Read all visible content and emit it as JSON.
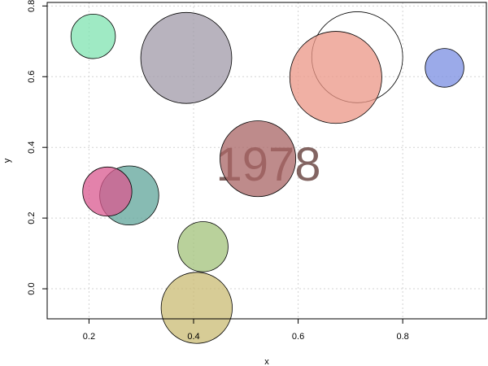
{
  "chart_data": {
    "type": "scatter",
    "xlabel": "x",
    "ylabel": "y",
    "xlim": [
      0.12,
      0.96
    ],
    "ylim": [
      -0.085,
      0.81
    ],
    "x_ticks": [
      0.2,
      0.4,
      0.6,
      0.8
    ],
    "x_tick_labels": [
      "0.2",
      "0.4",
      "0.6",
      "0.8"
    ],
    "y_ticks": [
      0.0,
      0.2,
      0.4,
      0.6,
      0.8
    ],
    "y_tick_labels": [
      "0.0",
      "0.2",
      "0.4",
      "0.6",
      "0.8"
    ],
    "grid": true,
    "annotation": "1978",
    "points": [
      {
        "x": 0.208,
        "y": 0.714,
        "size": 0.085,
        "fill": "#7fe3b0"
      },
      {
        "x": 0.386,
        "y": 0.653,
        "size": 0.174,
        "fill": "#a09aa8"
      },
      {
        "x": 0.713,
        "y": 0.655,
        "size": 0.174,
        "fill": "none"
      },
      {
        "x": 0.672,
        "y": 0.598,
        "size": 0.176,
        "fill": "#eb9686"
      },
      {
        "x": 0.88,
        "y": 0.625,
        "size": 0.074,
        "fill": "#7a8ee2"
      },
      {
        "x": 0.523,
        "y": 0.368,
        "size": 0.145,
        "fill": "#a86464"
      },
      {
        "x": 0.277,
        "y": 0.264,
        "size": 0.113,
        "fill": "#5fa49a"
      },
      {
        "x": 0.235,
        "y": 0.275,
        "size": 0.094,
        "fill": "#d9588f"
      },
      {
        "x": 0.418,
        "y": 0.119,
        "size": 0.096,
        "fill": "#a2c27a"
      },
      {
        "x": 0.406,
        "y": -0.054,
        "size": 0.136,
        "fill": "#c9bb73"
      }
    ]
  }
}
